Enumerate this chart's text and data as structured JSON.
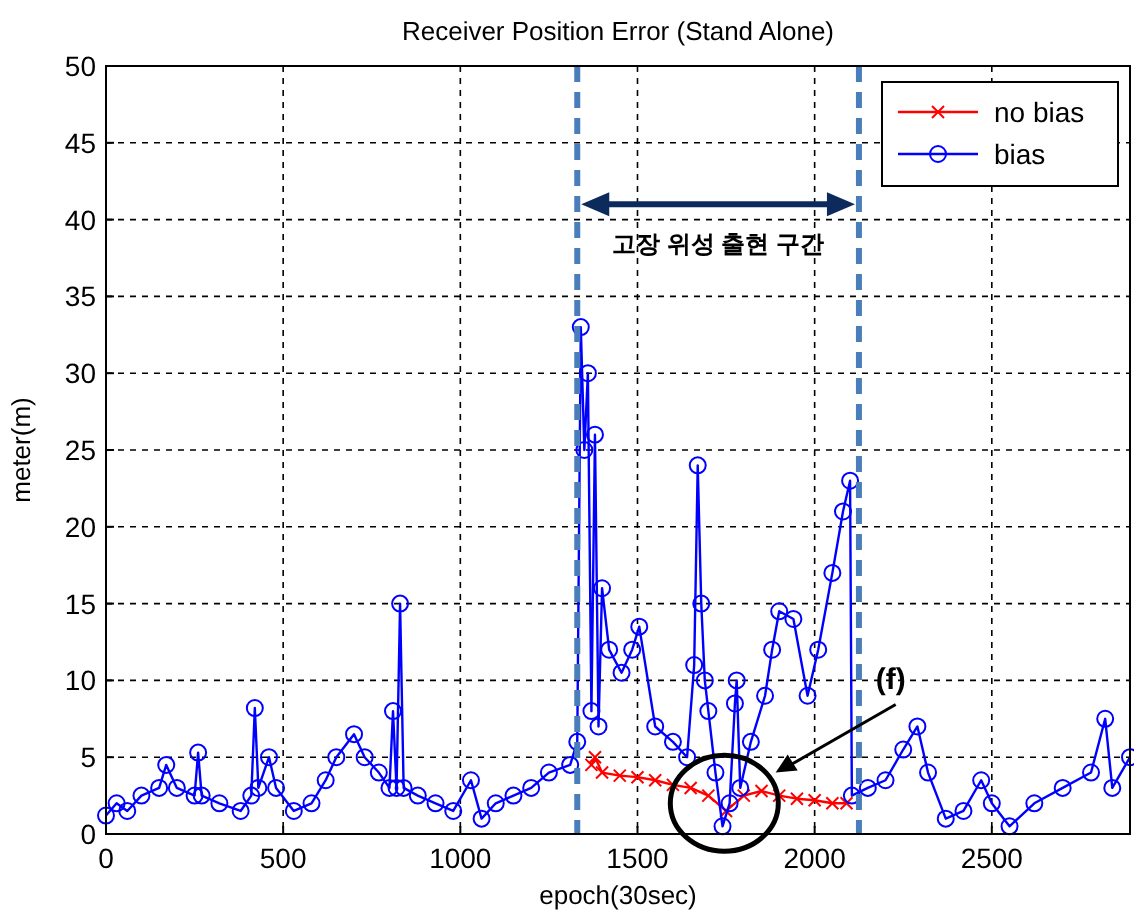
{
  "chart_data": {
    "type": "line",
    "title": "Receiver Position Error (Stand Alone)",
    "xlabel": "epoch(30sec)",
    "ylabel": "meter(m)",
    "xlim": [
      0,
      2890
    ],
    "xticks": [
      0,
      500,
      1000,
      1500,
      2000,
      2500
    ],
    "ylim": [
      0,
      50
    ],
    "yticks": [
      0,
      5,
      10,
      15,
      20,
      25,
      30,
      35,
      40,
      45,
      50
    ],
    "grid": true,
    "legend": "top right",
    "line_style": "solid",
    "ref_lines": [
      {
        "axis": "x",
        "value": 1330,
        "color": "#4a7ebb",
        "line_style": "dashed"
      },
      {
        "axis": "x",
        "value": 2125,
        "color": "#4a7ebb",
        "line_style": "dashed"
      }
    ],
    "annotations": [
      "고장 위성 출현 구간",
      "(f)"
    ],
    "series": [
      {
        "name": "no bias",
        "color": "#ff0000",
        "marker": "cross",
        "x": [
          1370,
          1380,
          1400,
          1450,
          1500,
          1550,
          1600,
          1650,
          1700,
          1750,
          1800,
          1850,
          1900,
          1950,
          2000,
          2050,
          2090
        ],
        "values": [
          4.5,
          5,
          4,
          3.8,
          3.7,
          3.5,
          3.2,
          3,
          2.5,
          1.5,
          2.5,
          2.8,
          2.5,
          2.3,
          2.2,
          2,
          2
        ]
      },
      {
        "name": "bias",
        "color": "#0000ff",
        "marker": "circle",
        "x": [
          0,
          30,
          60,
          100,
          150,
          170,
          200,
          250,
          260,
          270,
          320,
          380,
          410,
          420,
          430,
          460,
          480,
          530,
          580,
          620,
          650,
          700,
          730,
          770,
          800,
          810,
          820,
          830,
          840,
          880,
          930,
          980,
          1030,
          1060,
          1100,
          1150,
          1200,
          1250,
          1310,
          1330,
          1340,
          1350,
          1360,
          1370,
          1380,
          1390,
          1400,
          1420,
          1455,
          1485,
          1505,
          1550,
          1600,
          1640,
          1660,
          1670,
          1680,
          1690,
          1700,
          1720,
          1740,
          1760,
          1775,
          1780,
          1790,
          1820,
          1860,
          1880,
          1900,
          1940,
          1980,
          2010,
          2050,
          2080,
          2100,
          2105,
          2150,
          2200,
          2250,
          2290,
          2320,
          2370,
          2420,
          2470,
          2500,
          2550,
          2620,
          2700,
          2780,
          2820,
          2840,
          2890
        ],
        "values": [
          1.2,
          2,
          1.5,
          2.5,
          3,
          4.5,
          3,
          2.5,
          5.3,
          2.5,
          2,
          1.5,
          2.5,
          8.2,
          3,
          5,
          3,
          1.5,
          2,
          3.5,
          5,
          6.5,
          5,
          4,
          3,
          8,
          3,
          15,
          3,
          2.5,
          2,
          1.5,
          3.5,
          1,
          2,
          2.5,
          3,
          4,
          4.5,
          6,
          33,
          25,
          30,
          8,
          26,
          7,
          16,
          12,
          10.5,
          12,
          13.5,
          7,
          6,
          5,
          11,
          24,
          15,
          10,
          8,
          4,
          0.5,
          2,
          8.5,
          10,
          3,
          6,
          9,
          12,
          14.5,
          14,
          9,
          12,
          17,
          21,
          23,
          2.5,
          3,
          3.5,
          5.5,
          7,
          4,
          1,
          1.5,
          3.5,
          2,
          0.5,
          2,
          3,
          4,
          7.5,
          3,
          5
        ]
      }
    ]
  }
}
